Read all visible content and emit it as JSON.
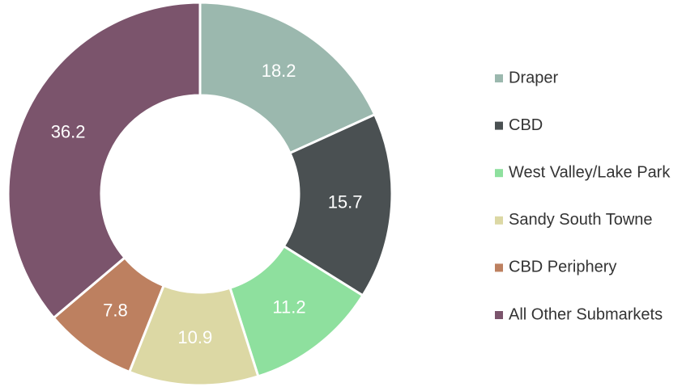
{
  "chart_data": {
    "type": "donut",
    "categories": [
      "Draper",
      "CBD",
      "West Valley/Lake Park",
      "Sandy South Towne",
      "CBD Periphery",
      "All Other Submarkets"
    ],
    "values": [
      18.2,
      15.7,
      11.2,
      10.9,
      7.8,
      36.2
    ],
    "colors": [
      "#9bb8ae",
      "#4a5052",
      "#8ee09e",
      "#dcd8a4",
      "#bd8060",
      "#7b546c"
    ],
    "legend": "right"
  }
}
